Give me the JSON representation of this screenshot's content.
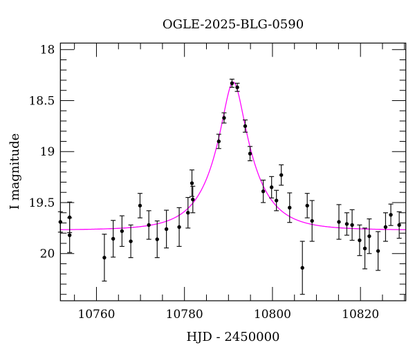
{
  "chart_data": {
    "type": "scatter",
    "title": "OGLE-2025-BLG-0590",
    "xlabel": "HJD - 2450000",
    "ylabel": "I magnitude",
    "xlim": [
      10751.8,
      10830.3
    ],
    "ylim": [
      20.463,
      17.936
    ],
    "y_inverted": true,
    "x_ticks": [
      10760,
      10780,
      10800,
      10820
    ],
    "x_tick_labels": [
      "10760",
      "10780",
      "10800",
      "10820"
    ],
    "y_ticks": [
      18,
      18.5,
      19,
      19.5,
      20
    ],
    "y_tick_labels": [
      "18",
      "18.5",
      "19",
      "19.5",
      "20"
    ],
    "grid": false,
    "model_color": "#ff00ff",
    "point_color": "#000000",
    "model": {
      "type": "point-lens",
      "t0": 10791.1,
      "u0": 0.27,
      "tE": 8.6,
      "baseline_mag": 19.77
    },
    "points": [
      {
        "x": 10751.8,
        "y": 19.69,
        "err": 0.1
      },
      {
        "x": 10753.9,
        "y": 19.645,
        "err": 0.15
      },
      {
        "x": 10753.9,
        "y": 19.82,
        "err": 0.17
      },
      {
        "x": 10761.8,
        "y": 20.04,
        "err": 0.23
      },
      {
        "x": 10763.8,
        "y": 19.855,
        "err": 0.18
      },
      {
        "x": 10765.8,
        "y": 19.78,
        "err": 0.15
      },
      {
        "x": 10767.8,
        "y": 19.88,
        "err": 0.16
      },
      {
        "x": 10769.9,
        "y": 19.53,
        "err": 0.12
      },
      {
        "x": 10771.9,
        "y": 19.72,
        "err": 0.14
      },
      {
        "x": 10773.8,
        "y": 19.86,
        "err": 0.18
      },
      {
        "x": 10775.9,
        "y": 19.76,
        "err": 0.185
      },
      {
        "x": 10778.8,
        "y": 19.74,
        "err": 0.19
      },
      {
        "x": 10780.8,
        "y": 19.6,
        "err": 0.15
      },
      {
        "x": 10781.7,
        "y": 19.31,
        "err": 0.13
      },
      {
        "x": 10781.9,
        "y": 19.47,
        "err": 0.13
      },
      {
        "x": 10787.8,
        "y": 18.9,
        "err": 0.07
      },
      {
        "x": 10789.0,
        "y": 18.67,
        "err": 0.05
      },
      {
        "x": 10790.8,
        "y": 18.33,
        "err": 0.04
      },
      {
        "x": 10792.0,
        "y": 18.37,
        "err": 0.04
      },
      {
        "x": 10793.8,
        "y": 18.75,
        "err": 0.06
      },
      {
        "x": 10794.9,
        "y": 19.02,
        "err": 0.07
      },
      {
        "x": 10797.9,
        "y": 19.39,
        "err": 0.11
      },
      {
        "x": 10799.8,
        "y": 19.35,
        "err": 0.105
      },
      {
        "x": 10800.9,
        "y": 19.48,
        "err": 0.1
      },
      {
        "x": 10802.0,
        "y": 19.23,
        "err": 0.1
      },
      {
        "x": 10803.9,
        "y": 19.55,
        "err": 0.145
      },
      {
        "x": 10806.8,
        "y": 20.14,
        "err": 0.26
      },
      {
        "x": 10807.9,
        "y": 19.53,
        "err": 0.12
      },
      {
        "x": 10809.0,
        "y": 19.68,
        "err": 0.2
      },
      {
        "x": 10815.1,
        "y": 19.69,
        "err": 0.17
      },
      {
        "x": 10816.9,
        "y": 19.71,
        "err": 0.11
      },
      {
        "x": 10818.1,
        "y": 19.72,
        "err": 0.15
      },
      {
        "x": 10819.8,
        "y": 19.87,
        "err": 0.15
      },
      {
        "x": 10821.0,
        "y": 19.95,
        "err": 0.2
      },
      {
        "x": 10822.0,
        "y": 19.83,
        "err": 0.17
      },
      {
        "x": 10824.0,
        "y": 19.975,
        "err": 0.19
      },
      {
        "x": 10825.7,
        "y": 19.74,
        "err": 0.14
      },
      {
        "x": 10826.9,
        "y": 19.62,
        "err": 0.105
      },
      {
        "x": 10828.8,
        "y": 19.72,
        "err": 0.13
      }
    ]
  }
}
